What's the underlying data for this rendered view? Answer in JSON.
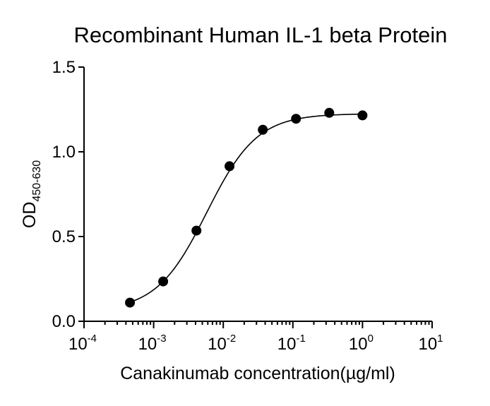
{
  "chart_data": {
    "type": "scatter",
    "title": "Recombinant Human IL-1 beta Protein",
    "xlabel": "Canakinumab concentration(µg/ml)",
    "ylabel_main": "OD",
    "ylabel_sub": "450-630",
    "x_scale": "log10",
    "xlim": [
      0.0001,
      10
    ],
    "ylim": [
      0,
      1.5
    ],
    "x_ticks": [
      {
        "base": "10",
        "exp": "-4",
        "value": 0.0001
      },
      {
        "base": "10",
        "exp": "-3",
        "value": 0.001
      },
      {
        "base": "10",
        "exp": "-2",
        "value": 0.01
      },
      {
        "base": "10",
        "exp": "-1",
        "value": 0.1
      },
      {
        "base": "10",
        "exp": "0",
        "value": 1
      },
      {
        "base": "10",
        "exp": "1",
        "value": 10
      }
    ],
    "y_ticks": [
      {
        "label": "0.0",
        "value": 0
      },
      {
        "label": "0.5",
        "value": 0.5
      },
      {
        "label": "1.0",
        "value": 1.0
      },
      {
        "label": "1.5",
        "value": 1.5
      }
    ],
    "grid": false,
    "legend": "none",
    "series": [
      {
        "x": [
          0.000457,
          0.00137,
          0.00412,
          0.0123,
          0.037,
          0.111,
          0.333,
          1.0
        ],
        "y": [
          0.11,
          0.235,
          0.535,
          0.915,
          1.13,
          1.195,
          1.23,
          1.215
        ],
        "fit": {
          "model": "4PL",
          "bottom": 0.06,
          "top": 1.225,
          "ec50": 0.0058,
          "hill": 1.2
        }
      }
    ]
  }
}
